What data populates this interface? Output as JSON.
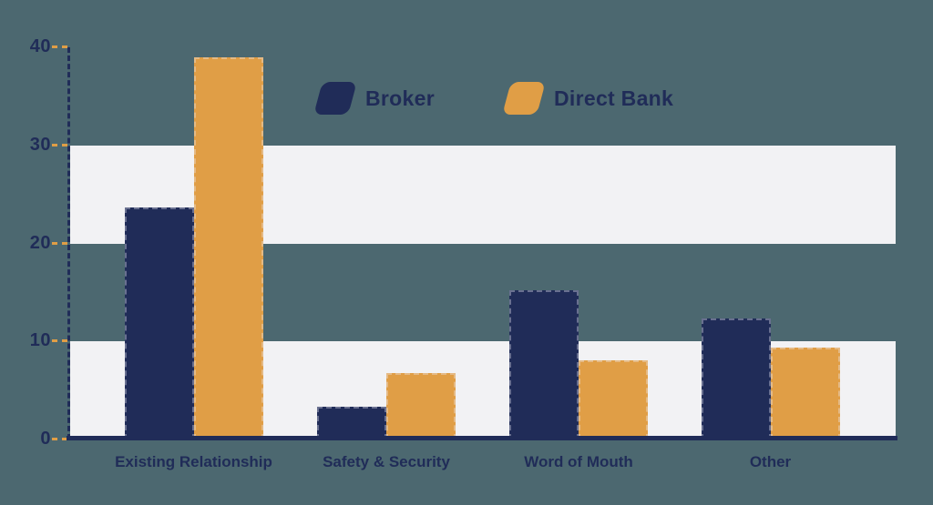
{
  "chart_data": {
    "type": "bar",
    "title": "",
    "xlabel": "",
    "ylabel": "",
    "categories": [
      "Existing Relationship",
      "Safety & Security",
      "Word of Mouth",
      "Other"
    ],
    "series": [
      {
        "name": "Broker",
        "color": "#202c58",
        "values": [
          23.7,
          3.3,
          15.2,
          12.3
        ]
      },
      {
        "name": "Direct Bank",
        "color": "#e09e46",
        "values": [
          39.0,
          6.8,
          8.1,
          9.4
        ]
      }
    ],
    "y_ticks": [
      40,
      30,
      20,
      10,
      0
    ],
    "ylim": [
      0,
      40
    ],
    "grid": "horizontal-bands",
    "grid_bands": [
      [
        20,
        30
      ],
      [
        0,
        10
      ]
    ],
    "legend_position": "top-center"
  },
  "colors": {
    "background": "#4c6870",
    "navy": "#202c58",
    "orange": "#e09e46",
    "band": "#f2f2f4",
    "tick_dash": "#e09e46"
  }
}
